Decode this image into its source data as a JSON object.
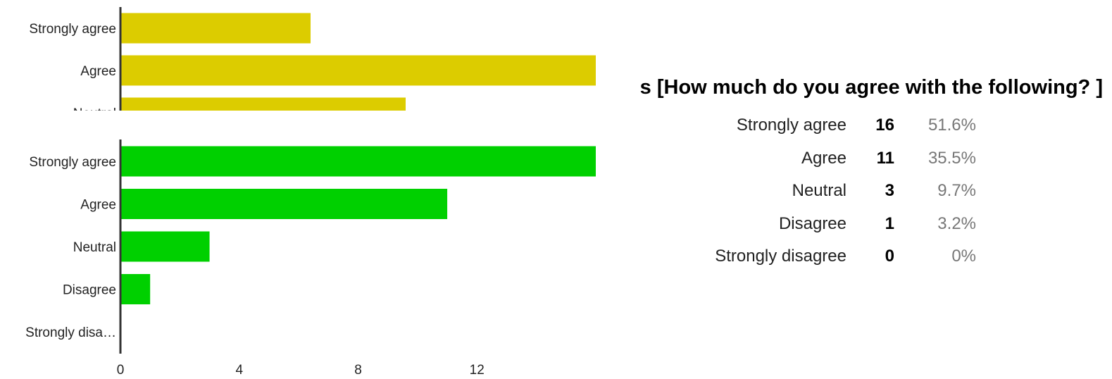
{
  "colors": {
    "partial_chart_bar": "#dccc00",
    "main_chart_bar": "#00d000",
    "axis": "#333333",
    "label_text": "#222222"
  },
  "chart_data": [
    {
      "type": "bar",
      "orientation": "horizontal",
      "partially_visible": true,
      "categories": [
        "Strongly agree",
        "Agree",
        "Neutral"
      ],
      "values": [
        6.4,
        16,
        9.6
      ],
      "xlim": [
        0,
        16
      ],
      "grid": false,
      "color": "#dccc00"
    },
    {
      "type": "bar",
      "orientation": "horizontal",
      "categories": [
        "Strongly agree",
        "Agree",
        "Neutral",
        "Disagree",
        "Strongly disa…"
      ],
      "values": [
        16,
        11,
        3,
        1,
        0
      ],
      "xlim": [
        0,
        16
      ],
      "xticks": [
        "0",
        "4",
        "8",
        "12"
      ],
      "grid": false,
      "color": "#00d000"
    }
  ],
  "question": {
    "visible_text": "s [How much do you agree with the following? ]"
  },
  "summary": {
    "rows": [
      {
        "label": "Strongly agree",
        "count": "16",
        "percent": "51.6%"
      },
      {
        "label": "Agree",
        "count": "11",
        "percent": "35.5%"
      },
      {
        "label": "Neutral",
        "count": "3",
        "percent": "9.7%"
      },
      {
        "label": "Disagree",
        "count": "1",
        "percent": "3.2%"
      },
      {
        "label": "Strongly disagree",
        "count": "0",
        "percent": "0%"
      }
    ]
  }
}
